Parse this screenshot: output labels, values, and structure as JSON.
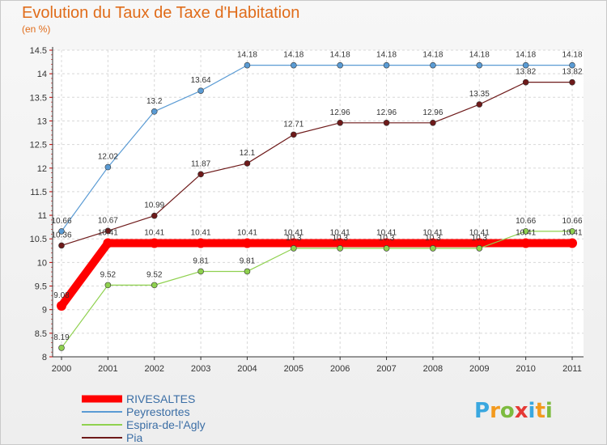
{
  "chart_data": {
    "type": "line",
    "title": "Evolution du Taux de Taxe d'Habitation",
    "subtitle": "(en %)",
    "x": [
      "2000",
      "2001",
      "2002",
      "2003",
      "2004",
      "2005",
      "2006",
      "2007",
      "2008",
      "2009",
      "2010",
      "2011"
    ],
    "ylim": [
      8,
      14.5
    ],
    "yticks": [
      "8",
      "8.5",
      "9",
      "9.5",
      "10",
      "10.5",
      "11",
      "11.5",
      "12",
      "12.5",
      "13",
      "13.5",
      "14",
      "14.5"
    ],
    "legend_placement": "bottom-left",
    "series": [
      {
        "name": "RIVESALTES",
        "color": "#ff0000",
        "values": [
          9.08,
          10.41,
          10.41,
          10.41,
          10.41,
          10.41,
          10.41,
          10.41,
          10.41,
          10.41,
          10.41,
          10.41
        ],
        "labels": [
          "9.08",
          "10.41",
          "10.41",
          "10.41",
          "10.41",
          "10.41",
          "10.41",
          "10.41",
          "10.41",
          "10.41",
          "10.41",
          "10.41"
        ]
      },
      {
        "name": "Peyrestortes",
        "color": "#5a9bd4",
        "values": [
          10.66,
          12.02,
          13.2,
          13.64,
          14.18,
          14.18,
          14.18,
          14.18,
          14.18,
          14.18,
          14.18,
          14.18
        ],
        "labels": [
          "10.66",
          "12.02",
          "13.2",
          "13.64",
          "14.18",
          "14.18",
          "14.18",
          "14.18",
          "14.18",
          "14.18",
          "14.18",
          "14.18"
        ]
      },
      {
        "name": "Espira-de-l'Agly",
        "color": "#8fd14f",
        "values": [
          8.19,
          9.52,
          9.52,
          9.81,
          9.81,
          10.3,
          10.3,
          10.3,
          10.3,
          10.3,
          10.66,
          10.66
        ],
        "labels": [
          "8.19",
          "9.52",
          "9.52",
          "9.81",
          "9.81",
          "10.3",
          "10.3",
          "10.3",
          "10.3",
          "10.3",
          "10.66",
          "10.66"
        ]
      },
      {
        "name": "Pia",
        "color": "#6e1a1a",
        "values": [
          10.36,
          10.67,
          10.99,
          11.87,
          12.1,
          12.71,
          12.96,
          12.96,
          12.96,
          13.35,
          13.82,
          13.82
        ],
        "labels": [
          "10.36",
          "10.67",
          "10.99",
          "11.87",
          "12.1",
          "12.71",
          "12.96",
          "12.96",
          "12.96",
          "13.35",
          "13.82",
          "13.82"
        ]
      }
    ]
  },
  "logo": {
    "letters": [
      "P",
      "r",
      "o",
      "x",
      "i",
      "t",
      "i"
    ],
    "colors": [
      "#3aa7df",
      "#f39a1e",
      "#7dbb3f",
      "#e53935",
      "#3aa7df",
      "#f39a1e",
      "#7dbb3f"
    ]
  }
}
